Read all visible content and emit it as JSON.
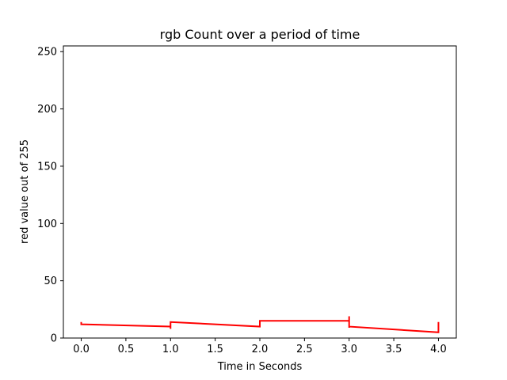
{
  "chart_data": {
    "type": "line",
    "title": "rgb Count over a period of time",
    "xlabel": "Time in Seconds",
    "ylabel": "red value out of 255",
    "xlim": [
      -0.2,
      4.2
    ],
    "ylim": [
      0,
      255
    ],
    "x_ticks": [
      0.0,
      0.5,
      1.0,
      1.5,
      2.0,
      2.5,
      3.0,
      3.5,
      4.0
    ],
    "x_tick_labels": [
      "0.0",
      "0.5",
      "1.0",
      "1.5",
      "2.0",
      "2.5",
      "3.0",
      "3.5",
      "4.0"
    ],
    "y_ticks": [
      0,
      50,
      100,
      150,
      200,
      250
    ],
    "y_tick_labels": [
      "0",
      "50",
      "100",
      "150",
      "200",
      "250"
    ],
    "grid": false,
    "series": [
      {
        "color": "#ff0000",
        "points": [
          [
            0.0,
            14
          ],
          [
            0.0,
            12
          ],
          [
            1.0,
            10
          ],
          [
            1.0,
            8
          ],
          [
            1.0,
            14
          ],
          [
            2.0,
            10
          ],
          [
            2.0,
            15
          ],
          [
            3.0,
            15
          ],
          [
            3.0,
            19
          ],
          [
            3.0,
            10
          ],
          [
            3.0,
            9
          ],
          [
            3.0,
            10
          ],
          [
            4.0,
            5
          ],
          [
            4.0,
            14
          ]
        ]
      }
    ]
  }
}
